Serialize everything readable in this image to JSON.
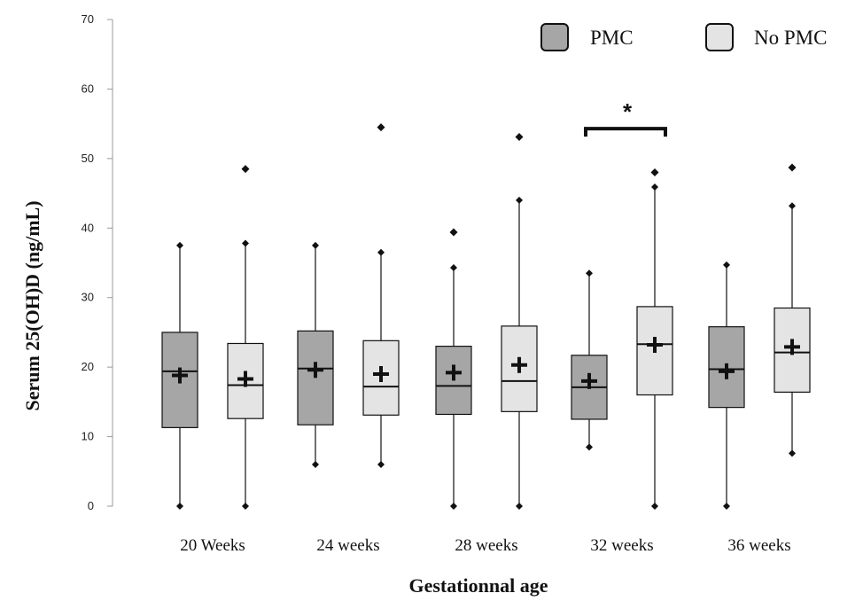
{
  "chart_data": {
    "type": "box",
    "xlabel": "Gestationnal age",
    "ylabel": "Serum 25(OH)D (ng/mL)",
    "ylim": [
      0,
      70
    ],
    "yticks": [
      0,
      10,
      20,
      30,
      40,
      50,
      60,
      70
    ],
    "grid": false,
    "legend_position": "top-right",
    "categories": [
      "20 Weeks",
      "24 weeks",
      "28 weeks",
      "32 weeks",
      "36 weeks"
    ],
    "series": [
      {
        "name": "PMC",
        "color": "#a6a6a6",
        "boxes": [
          {
            "min": 0,
            "q1": 11.3,
            "median": 19.4,
            "q3": 25.0,
            "max": 37.5,
            "mean": 18.8,
            "outliers": []
          },
          {
            "min": 6.0,
            "q1": 11.7,
            "median": 19.8,
            "q3": 25.2,
            "max": 37.5,
            "mean": 19.6,
            "outliers": []
          },
          {
            "min": 0,
            "q1": 13.2,
            "median": 17.3,
            "q3": 23.0,
            "max": 34.3,
            "mean": 19.2,
            "outliers": [
              39.4
            ]
          },
          {
            "min": 8.5,
            "q1": 12.5,
            "median": 17.1,
            "q3": 21.7,
            "max": 33.5,
            "mean": 18.0,
            "outliers": []
          },
          {
            "min": 0,
            "q1": 14.2,
            "median": 19.7,
            "q3": 25.8,
            "max": 34.7,
            "mean": 19.4,
            "outliers": []
          }
        ]
      },
      {
        "name": "No PMC",
        "color": "#e4e4e4",
        "boxes": [
          {
            "min": 0,
            "q1": 12.6,
            "median": 17.4,
            "q3": 23.4,
            "max": 37.8,
            "mean": 18.3,
            "outliers": [
              48.5
            ]
          },
          {
            "min": 6.0,
            "q1": 13.1,
            "median": 17.2,
            "q3": 23.8,
            "max": 36.5,
            "mean": 19.0,
            "outliers": [
              54.5
            ]
          },
          {
            "min": 0,
            "q1": 13.6,
            "median": 18.0,
            "q3": 25.9,
            "max": 44.0,
            "mean": 20.3,
            "outliers": [
              53.1
            ]
          },
          {
            "min": 0,
            "q1": 16.0,
            "median": 23.3,
            "q3": 28.7,
            "max": 45.9,
            "mean": 23.2,
            "outliers": [
              48.0
            ]
          },
          {
            "min": 7.6,
            "q1": 16.4,
            "median": 22.1,
            "q3": 28.5,
            "max": 43.2,
            "mean": 22.9,
            "outliers": [
              48.7
            ]
          }
        ]
      }
    ],
    "annotations": [
      {
        "text": "*",
        "category_index": 3,
        "bracket_between": [
          "PMC",
          "No PMC"
        ],
        "bracket_level": 54.3
      }
    ]
  }
}
